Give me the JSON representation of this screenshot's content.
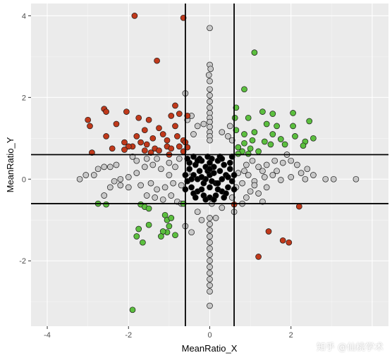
{
  "chart_data": {
    "type": "scatter",
    "title": "",
    "xlabel": "MeanRatio_X",
    "ylabel": "MeanRatio_Y",
    "xlim": [
      -4.4,
      4.4
    ],
    "ylim": [
      -3.6,
      4.3
    ],
    "x_ticks": [
      -4,
      -2,
      0,
      2
    ],
    "y_ticks": [
      -2,
      0,
      2,
      4
    ],
    "x_tick_labels": [
      "-4",
      "-2",
      "0",
      "2"
    ],
    "y_tick_labels": [
      "-2",
      "0",
      "2",
      "4"
    ],
    "grid": true,
    "vlines": [
      -0.6,
      0.6
    ],
    "hlines": [
      -0.6,
      0.6
    ],
    "colors": {
      "panel": "#ebebeb",
      "grid_major": "#ffffff",
      "grid_minor": "#f5f5f5",
      "red": "#c0391b",
      "green": "#5cbf3f",
      "grey": "#c8c8c8",
      "black": "#000000",
      "outline": "#1a1a1a"
    },
    "series": [
      {
        "group": "red",
        "points": [
          [
            -1.85,
            4.0
          ],
          [
            -0.65,
            3.95
          ],
          [
            -1.3,
            2.9
          ],
          [
            -2.6,
            1.72
          ],
          [
            -2.55,
            1.65
          ],
          [
            -2.05,
            1.65
          ],
          [
            -0.85,
            1.8
          ],
          [
            -0.75,
            1.6
          ],
          [
            -0.95,
            1.55
          ],
          [
            -0.55,
            1.55
          ],
          [
            -3.0,
            1.45
          ],
          [
            -2.95,
            1.3
          ],
          [
            -2.3,
            1.35
          ],
          [
            -1.75,
            1.5
          ],
          [
            -1.6,
            1.2
          ],
          [
            -1.5,
            1.45
          ],
          [
            -1.25,
            1.25
          ],
          [
            -0.85,
            1.3
          ],
          [
            -2.55,
            1.05
          ],
          [
            -1.8,
            1.05
          ],
          [
            -1.4,
            1.0
          ],
          [
            -1.9,
            0.8
          ],
          [
            -1.7,
            0.9
          ],
          [
            -1.55,
            0.85
          ],
          [
            -2.0,
            0.8
          ],
          [
            -2.1,
            0.9
          ],
          [
            -2.4,
            0.75
          ],
          [
            -2.9,
            0.65
          ],
          [
            -1.15,
            1.1
          ],
          [
            -1.05,
            0.95
          ],
          [
            -0.8,
            1.05
          ],
          [
            -0.65,
            0.95
          ],
          [
            -1.35,
            0.75
          ],
          [
            -1.25,
            0.7
          ],
          [
            -1.45,
            0.65
          ],
          [
            -1.05,
            0.8
          ],
          [
            -0.75,
            0.8
          ],
          [
            -0.95,
            0.75
          ],
          [
            -0.55,
            0.78
          ],
          [
            -0.65,
            0.68
          ],
          [
            -0.6,
            0.9
          ],
          [
            -1.0,
            0.6
          ],
          [
            -2.1,
            0.72
          ],
          [
            -1.6,
            0.7
          ],
          [
            0.6,
            -0.62
          ],
          [
            2.2,
            -0.67
          ],
          [
            1.45,
            -1.28
          ],
          [
            1.8,
            -1.5
          ],
          [
            1.95,
            -1.55
          ],
          [
            1.2,
            -1.9
          ]
        ]
      },
      {
        "group": "green",
        "points": [
          [
            1.1,
            3.1
          ],
          [
            0.85,
            2.2
          ],
          [
            0.65,
            1.75
          ],
          [
            1.3,
            1.65
          ],
          [
            1.55,
            1.6
          ],
          [
            2.05,
            1.62
          ],
          [
            0.62,
            1.5
          ],
          [
            0.95,
            1.5
          ],
          [
            1.4,
            1.35
          ],
          [
            1.65,
            1.3
          ],
          [
            2.05,
            1.3
          ],
          [
            2.45,
            1.42
          ],
          [
            0.65,
            1.2
          ],
          [
            0.85,
            1.1
          ],
          [
            1.1,
            1.15
          ],
          [
            1.55,
            1.1
          ],
          [
            1.75,
            0.98
          ],
          [
            2.1,
            1.05
          ],
          [
            2.55,
            1.0
          ],
          [
            2.35,
            0.92
          ],
          [
            1.05,
            0.95
          ],
          [
            0.85,
            0.88
          ],
          [
            1.35,
            0.92
          ],
          [
            1.5,
            0.85
          ],
          [
            1.85,
            0.85
          ],
          [
            2.3,
            0.82
          ],
          [
            0.7,
            0.78
          ],
          [
            1.0,
            0.75
          ],
          [
            0.8,
            0.68
          ],
          [
            0.95,
            0.62
          ],
          [
            0.7,
            0.62
          ],
          [
            1.2,
            0.68
          ],
          [
            -2.75,
            -0.6
          ],
          [
            -2.55,
            -0.62
          ],
          [
            -1.7,
            -0.62
          ],
          [
            -1.6,
            -0.68
          ],
          [
            -1.5,
            -0.72
          ],
          [
            -1.1,
            -0.88
          ],
          [
            -1.05,
            -1.0
          ],
          [
            -0.95,
            -0.95
          ],
          [
            -1.0,
            -1.15
          ],
          [
            -1.5,
            -1.12
          ],
          [
            -1.75,
            -1.22
          ],
          [
            -1.05,
            -1.3
          ],
          [
            -1.15,
            -1.28
          ],
          [
            -1.2,
            -1.4
          ],
          [
            -0.85,
            -1.37
          ],
          [
            -1.8,
            -1.4
          ],
          [
            -1.65,
            -1.55
          ],
          [
            -0.65,
            -0.6
          ],
          [
            -1.9,
            -3.2
          ]
        ]
      },
      {
        "group": "grey",
        "points": [
          [
            0.0,
            3.7
          ],
          [
            0.0,
            2.8
          ],
          [
            0.02,
            2.7
          ],
          [
            -0.02,
            2.55
          ],
          [
            0.0,
            2.4
          ],
          [
            0.0,
            2.2
          ],
          [
            0.0,
            2.05
          ],
          [
            0.0,
            1.9
          ],
          [
            0.0,
            1.75
          ],
          [
            0.0,
            1.62
          ],
          [
            0.0,
            1.5
          ],
          [
            0.0,
            1.4
          ],
          [
            0.0,
            1.28
          ],
          [
            0.0,
            1.15
          ],
          [
            0.0,
            1.05
          ],
          [
            0.0,
            0.95
          ],
          [
            0.0,
            -0.95
          ],
          [
            0.0,
            -1.1
          ],
          [
            0.0,
            -1.25
          ],
          [
            0.0,
            -1.4
          ],
          [
            0.0,
            -1.55
          ],
          [
            0.0,
            -1.7
          ],
          [
            0.0,
            -1.85
          ],
          [
            0.0,
            -2.0
          ],
          [
            0.0,
            -2.15
          ],
          [
            0.0,
            -2.3
          ],
          [
            0.0,
            -2.45
          ],
          [
            0.0,
            -2.6
          ],
          [
            0.0,
            -2.75
          ],
          [
            0.0,
            -3.1
          ],
          [
            -0.6,
            2.1
          ],
          [
            -0.45,
            1.55
          ],
          [
            -0.3,
            1.3
          ],
          [
            -0.4,
            1.1
          ],
          [
            0.5,
            1.3
          ],
          [
            0.45,
            1.05
          ],
          [
            0.3,
            1.15
          ],
          [
            0.55,
            0.95
          ],
          [
            -0.55,
            1.45
          ],
          [
            -0.15,
            1.35
          ],
          [
            3.6,
            0.0
          ],
          [
            3.05,
            0.0
          ],
          [
            2.85,
            0.0
          ],
          [
            2.35,
            0.0
          ],
          [
            2.55,
            0.1
          ],
          [
            2.0,
            0.05
          ],
          [
            1.75,
            -0.02
          ],
          [
            1.55,
            0.1
          ],
          [
            1.35,
            0.05
          ],
          [
            1.1,
            -0.05
          ],
          [
            0.95,
            0.1
          ],
          [
            0.8,
            -0.1
          ],
          [
            0.7,
            0.15
          ],
          [
            0.65,
            -0.2
          ],
          [
            2.15,
            0.35
          ],
          [
            2.4,
            0.25
          ],
          [
            2.0,
            0.45
          ],
          [
            1.8,
            0.4
          ],
          [
            1.6,
            0.45
          ],
          [
            1.4,
            0.35
          ],
          [
            1.2,
            0.3
          ],
          [
            1.05,
            0.45
          ],
          [
            0.9,
            0.35
          ],
          [
            1.9,
            0.6
          ],
          [
            2.25,
            0.15
          ],
          [
            1.65,
            0.2
          ],
          [
            1.3,
            0.2
          ],
          [
            0.85,
            0.2
          ],
          [
            1.4,
            -0.2
          ],
          [
            1.2,
            -0.35
          ],
          [
            1.0,
            -0.3
          ],
          [
            0.9,
            -0.45
          ],
          [
            1.3,
            -0.55
          ],
          [
            0.8,
            -0.6
          ],
          [
            0.6,
            -0.8
          ],
          [
            0.55,
            -0.45
          ],
          [
            1.1,
            -0.15
          ],
          [
            -3.2,
            0.0
          ],
          [
            -3.05,
            0.1
          ],
          [
            -2.85,
            0.1
          ],
          [
            -2.6,
            0.3
          ],
          [
            -2.45,
            0.3
          ],
          [
            -2.3,
            0.35
          ],
          [
            -2.75,
            0.25
          ],
          [
            -2.45,
            -0.2
          ],
          [
            -2.35,
            -0.05
          ],
          [
            -2.0,
            0.05
          ],
          [
            -2.2,
            0.0
          ],
          [
            -1.8,
            0.15
          ],
          [
            -1.6,
            0.3
          ],
          [
            -1.4,
            0.35
          ],
          [
            -1.2,
            0.25
          ],
          [
            -1.0,
            0.4
          ],
          [
            -0.85,
            0.3
          ],
          [
            -0.75,
            0.5
          ],
          [
            -1.3,
            0.5
          ],
          [
            -1.8,
            0.45
          ],
          [
            -1.55,
            0.5
          ],
          [
            -1.9,
            0.55
          ],
          [
            -2.0,
            -0.2
          ],
          [
            -1.7,
            -0.15
          ],
          [
            -1.45,
            -0.1
          ],
          [
            -1.3,
            -0.25
          ],
          [
            -1.1,
            -0.2
          ],
          [
            -0.9,
            -0.1
          ],
          [
            -0.7,
            -0.15
          ],
          [
            -1.55,
            -0.4
          ],
          [
            -1.35,
            -0.45
          ],
          [
            -1.15,
            -0.5
          ],
          [
            -0.95,
            -0.4
          ],
          [
            -0.8,
            -0.55
          ],
          [
            -0.6,
            -1.15
          ],
          [
            -0.45,
            -1.3
          ],
          [
            -2.6,
            -0.4
          ],
          [
            -2.2,
            -0.15
          ],
          [
            -1.0,
            0.1
          ],
          [
            -0.55,
            0.15
          ],
          [
            -0.7,
            -0.6
          ],
          [
            -0.3,
            -0.8
          ],
          [
            -0.2,
            -1.0
          ],
          [
            0.3,
            -0.7
          ],
          [
            0.15,
            -0.95
          ],
          [
            0.05,
            -0.6
          ]
        ]
      },
      {
        "group": "black",
        "points": [
          [
            -0.05,
            0.55
          ],
          [
            0.05,
            0.5
          ],
          [
            -0.2,
            0.45
          ],
          [
            0.2,
            0.45
          ],
          [
            -0.35,
            0.35
          ],
          [
            0.35,
            0.35
          ],
          [
            -0.5,
            0.25
          ],
          [
            0.5,
            0.25
          ],
          [
            -0.6,
            0.1
          ],
          [
            0.6,
            0.1
          ],
          [
            -0.55,
            -0.05
          ],
          [
            0.55,
            -0.05
          ],
          [
            -0.45,
            -0.2
          ],
          [
            0.45,
            -0.2
          ],
          [
            -0.3,
            -0.3
          ],
          [
            0.3,
            -0.3
          ],
          [
            -0.15,
            -0.4
          ],
          [
            0.15,
            -0.4
          ],
          [
            0.0,
            -0.45
          ],
          [
            -0.1,
            0.3
          ],
          [
            0.1,
            0.3
          ],
          [
            -0.25,
            0.2
          ],
          [
            0.25,
            0.2
          ],
          [
            -0.4,
            0.1
          ],
          [
            0.4,
            0.1
          ],
          [
            -0.3,
            0.0
          ],
          [
            0.3,
            0.0
          ],
          [
            -0.15,
            -0.1
          ],
          [
            0.15,
            -0.1
          ],
          [
            0.0,
            0.1
          ],
          [
            0.0,
            -0.2
          ],
          [
            -0.2,
            -0.25
          ],
          [
            0.2,
            -0.25
          ],
          [
            -0.05,
            0.2
          ],
          [
            0.05,
            -0.05
          ],
          [
            -0.4,
            -0.35
          ],
          [
            0.4,
            -0.35
          ],
          [
            -0.25,
            0.5
          ],
          [
            0.25,
            0.55
          ],
          [
            -0.1,
            -0.5
          ],
          [
            0.1,
            -0.5
          ],
          [
            -0.5,
            0.4
          ],
          [
            0.5,
            0.4
          ],
          [
            -0.35,
            -0.45
          ],
          [
            0.35,
            -0.45
          ],
          [
            -0.6,
            -0.25
          ],
          [
            0.6,
            -0.25
          ],
          [
            -0.1,
            0.0
          ],
          [
            0.1,
            0.15
          ],
          [
            -0.2,
            0.05
          ],
          [
            0.2,
            -0.1
          ],
          [
            -0.45,
            0.0
          ],
          [
            0.45,
            0.05
          ],
          [
            0.0,
            0.4
          ],
          [
            0.0,
            0.25
          ],
          [
            -0.3,
            0.45
          ],
          [
            0.3,
            0.5
          ],
          [
            -0.55,
            0.5
          ],
          [
            0.55,
            0.55
          ],
          [
            -0.4,
            0.55
          ]
        ]
      }
    ]
  },
  "watermark": {
    "text": "知乎 @仙桃学术"
  }
}
